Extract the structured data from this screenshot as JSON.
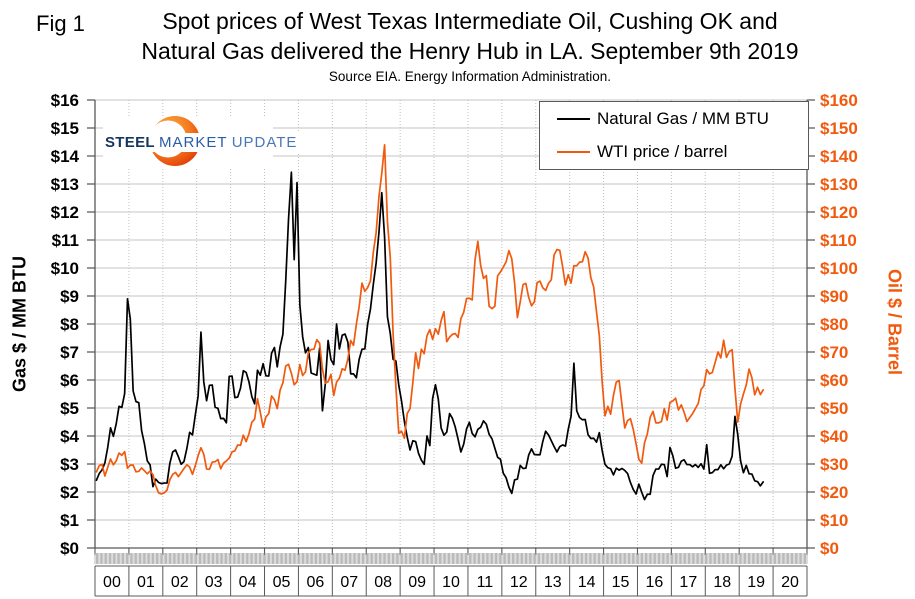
{
  "fig_label": "Fig 1",
  "title_line1": "Spot prices of West Texas Intermediate Oil, Cushing OK and",
  "title_line2": "Natural Gas delivered the Henry Hub in LA. September 9th 2019",
  "source": "Source EIA. Energy Information Administration.",
  "logo": {
    "word1": "STEEL",
    "word2": "MARKET",
    "word3": "UPDATE"
  },
  "colors": {
    "gas": "#000000",
    "oil": "#F15A0E",
    "gridline": "#c6c6c6",
    "dotted_grid": "#bfbfbf",
    "axis": "#595959"
  },
  "left_axis": {
    "title": "Gas $ / MM BTU",
    "ticks": [
      "$0",
      "$1",
      "$2",
      "$3",
      "$4",
      "$5",
      "$6",
      "$7",
      "$8",
      "$9",
      "$10",
      "$11",
      "$12",
      "$13",
      "$14",
      "$15",
      "$16"
    ]
  },
  "right_axis": {
    "title": "Oil $ / Barrel",
    "ticks": [
      "$0",
      "$10",
      "$20",
      "$30",
      "$40",
      "$50",
      "$60",
      "$70",
      "$80",
      "$90",
      "$100",
      "$110",
      "$120",
      "$130",
      "$140",
      "$150",
      "$160"
    ]
  },
  "x_axis": {
    "labels": [
      "00",
      "01",
      "02",
      "03",
      "04",
      "05",
      "06",
      "07",
      "08",
      "09",
      "10",
      "11",
      "12",
      "13",
      "14",
      "15",
      "16",
      "17",
      "18",
      "19",
      "20"
    ]
  },
  "legend": {
    "items": [
      {
        "label": "Natural Gas / MM BTU",
        "color": "#000000"
      },
      {
        "label": "WTI price / barrel",
        "color": "#F15A0E"
      }
    ]
  },
  "chart_data": {
    "type": "line",
    "title": "Spot prices of West Texas Intermediate Oil, Cushing OK and Natural Gas delivered the Henry Hub in LA. September 9th 2019",
    "subtitle": "Source EIA. Energy Information Administration.",
    "x_start_year": 2000,
    "x_axis_years": 21,
    "frequency": "monthly",
    "left_ylim": [
      0,
      16
    ],
    "right_ylim": [
      0,
      160
    ],
    "grid": true,
    "legend_position": "upper-right",
    "series": [
      {
        "name": "Natural Gas / MM BTU",
        "axis": "left",
        "unit": "$/MM BTU",
        "color": "#000000",
        "start": "2000-01",
        "values": [
          2.42,
          2.66,
          2.79,
          3.04,
          3.59,
          4.29,
          3.99,
          4.43,
          5.06,
          5.02,
          5.52,
          8.9,
          8.17,
          5.61,
          5.23,
          5.19,
          4.19,
          3.72,
          3.11,
          2.97,
          2.19,
          2.46,
          2.34,
          2.3,
          2.32,
          2.32,
          3.03,
          3.43,
          3.5,
          3.26,
          2.99,
          3.09,
          3.55,
          4.13,
          4.04,
          4.75,
          5.43,
          7.71,
          5.93,
          5.26,
          5.81,
          5.82,
          5.03,
          4.99,
          4.62,
          4.63,
          4.47,
          6.13,
          6.14,
          5.37,
          5.39,
          5.71,
          6.33,
          6.27,
          5.93,
          5.41,
          5.15,
          6.35,
          6.17,
          6.58,
          6.15,
          6.14,
          6.96,
          7.16,
          6.47,
          7.18,
          7.63,
          9.53,
          11.75,
          13.42,
          10.3,
          13.05,
          8.69,
          7.54,
          6.97,
          7.16,
          6.25,
          6.21,
          6.17,
          7.14,
          4.9,
          5.85,
          7.41,
          6.73,
          6.55,
          8.0,
          7.11,
          7.6,
          7.64,
          7.35,
          6.22,
          6.22,
          6.08,
          6.74,
          7.1,
          7.11,
          7.99,
          8.54,
          9.41,
          10.18,
          11.27,
          12.69,
          11.09,
          8.26,
          7.67,
          6.74,
          6.68,
          5.82,
          5.24,
          4.52,
          3.96,
          3.5,
          3.83,
          3.8,
          3.38,
          3.14,
          2.99,
          4.0,
          3.66,
          5.34,
          5.83,
          5.32,
          4.29,
          4.03,
          4.14,
          4.8,
          4.63,
          4.32,
          3.89,
          3.43,
          3.71,
          4.25,
          4.49,
          4.09,
          3.97,
          4.24,
          4.31,
          4.54,
          4.42,
          4.06,
          3.9,
          3.57,
          3.24,
          3.17,
          2.67,
          2.51,
          2.17,
          1.95,
          2.43,
          2.46,
          2.95,
          2.84,
          2.85,
          3.32,
          3.54,
          3.34,
          3.33,
          3.33,
          3.81,
          4.17,
          4.04,
          3.83,
          3.62,
          3.43,
          3.62,
          3.68,
          3.64,
          4.24,
          4.71,
          6.6,
          4.9,
          4.66,
          4.58,
          4.59,
          4.05,
          3.91,
          3.92,
          3.78,
          4.12,
          3.48,
          2.99,
          2.87,
          2.83,
          2.61,
          2.85,
          2.78,
          2.84,
          2.77,
          2.66,
          2.34,
          2.09,
          1.93,
          2.28,
          1.99,
          1.73,
          1.92,
          1.92,
          2.59,
          2.82,
          2.82,
          2.99,
          2.98,
          2.55,
          3.59,
          3.3,
          2.85,
          2.88,
          3.1,
          3.15,
          2.98,
          2.98,
          2.9,
          2.98,
          2.88,
          3.01,
          2.82,
          3.69,
          2.67,
          2.69,
          2.8,
          2.8,
          2.97,
          2.83,
          2.96,
          3.0,
          3.28,
          4.7,
          4.04,
          3.11,
          2.69,
          2.95,
          2.65,
          2.64,
          2.4,
          2.37,
          2.22,
          2.36
        ]
      },
      {
        "name": "WTI price / barrel",
        "axis": "right",
        "unit": "$/barrel",
        "color": "#F15A0E",
        "start": "2000-01",
        "values": [
          27.2,
          29.4,
          29.9,
          25.7,
          28.8,
          31.8,
          29.7,
          31.1,
          33.9,
          33.1,
          34.4,
          28.5,
          29.6,
          29.6,
          27.2,
          27.4,
          28.6,
          27.6,
          26.5,
          27.5,
          26.2,
          22.2,
          19.7,
          19.3,
          19.7,
          20.7,
          24.4,
          26.3,
          27.0,
          25.5,
          26.9,
          28.4,
          29.7,
          28.9,
          26.3,
          29.4,
          33.0,
          35.8,
          33.5,
          28.2,
          28.1,
          30.7,
          30.8,
          31.6,
          28.3,
          30.3,
          31.1,
          32.1,
          34.3,
          34.7,
          36.8,
          36.7,
          40.3,
          38.0,
          40.8,
          44.9,
          46.0,
          53.3,
          48.5,
          43.1,
          46.8,
          48.0,
          54.3,
          53.0,
          49.8,
          56.3,
          59.0,
          65.0,
          65.6,
          62.4,
          58.3,
          59.4,
          65.5,
          61.6,
          62.9,
          69.7,
          70.9,
          71.0,
          74.4,
          73.1,
          63.9,
          58.9,
          59.4,
          62.0,
          54.5,
          59.3,
          60.6,
          64.0,
          63.5,
          67.5,
          74.1,
          72.4,
          79.9,
          86.2,
          94.6,
          91.7,
          93.0,
          95.4,
          105.6,
          112.6,
          125.4,
          133.9,
          144.0,
          116.6,
          103.9,
          76.7,
          57.4,
          41.0,
          41.7,
          39.2,
          48.0,
          49.8,
          59.2,
          69.7,
          64.1,
          71.0,
          69.4,
          75.8,
          78.0,
          74.5,
          78.3,
          76.4,
          81.2,
          84.4,
          73.7,
          75.3,
          76.3,
          76.6,
          75.2,
          81.9,
          84.2,
          89.1,
          89.2,
          88.6,
          102.9,
          109.5,
          100.9,
          96.3,
          97.3,
          86.3,
          85.5,
          86.3,
          97.2,
          98.6,
          100.3,
          102.2,
          106.2,
          103.3,
          94.7,
          82.3,
          87.9,
          94.1,
          94.5,
          89.5,
          86.5,
          87.9,
          94.8,
          95.3,
          92.9,
          92.0,
          94.5,
          95.8,
          104.7,
          106.6,
          106.3,
          100.5,
          93.9,
          97.6,
          94.6,
          100.8,
          100.8,
          102.1,
          102.2,
          105.8,
          103.6,
          96.5,
          93.2,
          84.4,
          75.8,
          59.3,
          47.2,
          50.6,
          47.8,
          54.5,
          59.3,
          59.8,
          51.2,
          42.9,
          45.5,
          46.2,
          42.4,
          37.2,
          31.7,
          30.3,
          37.6,
          40.8,
          46.7,
          48.8,
          44.7,
          44.7,
          45.2,
          49.8,
          45.7,
          52.0,
          52.5,
          53.5,
          49.3,
          51.1,
          48.5,
          45.2,
          46.6,
          48.0,
          49.8,
          51.6,
          56.6,
          57.9,
          63.7,
          62.2,
          62.7,
          66.3,
          70.0,
          67.9,
          74.2,
          68.1,
          70.2,
          70.8,
          57.0,
          45.0,
          51.4,
          55.0,
          58.2,
          63.9,
          60.8,
          54.7,
          57.4,
          54.8,
          56.5
        ]
      }
    ]
  }
}
